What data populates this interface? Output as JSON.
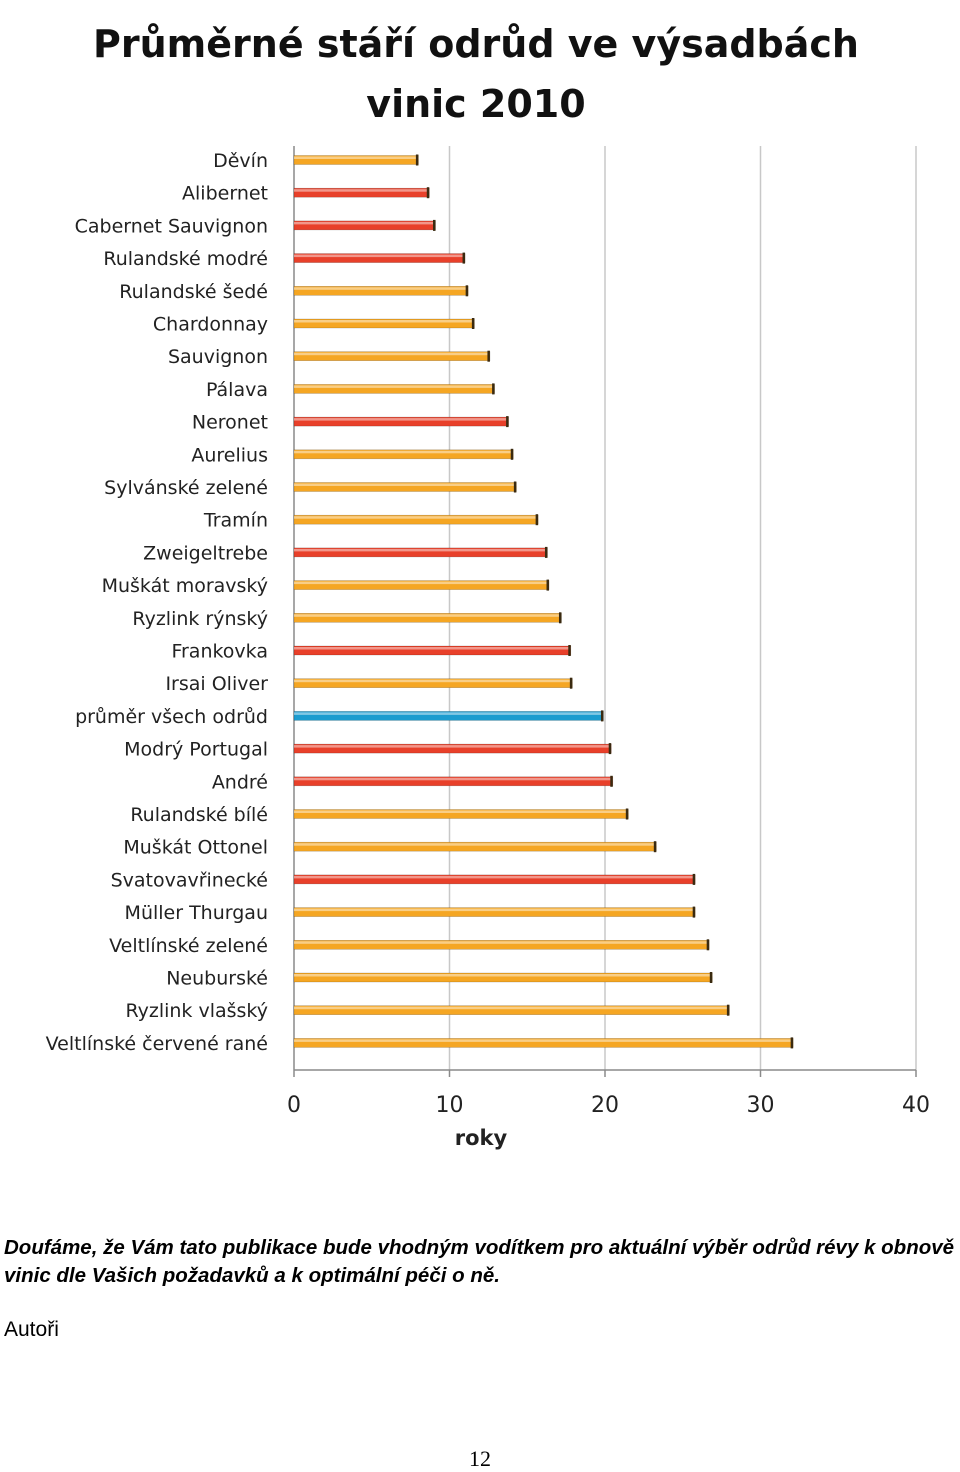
{
  "chart_data": {
    "type": "bar",
    "orientation": "horizontal",
    "title_lines": [
      "Průměrné stáří odrůd ve výsadbách",
      "vinic 2010"
    ],
    "xlabel": "roky",
    "ylabel": "",
    "xlim": [
      0,
      40
    ],
    "xticks": [
      0,
      10,
      20,
      30,
      40
    ],
    "grid": true,
    "legend": "none",
    "categories": [
      "Děvín",
      "Alibernet",
      "Cabernet Sauvignon",
      "Rulandské modré",
      "Rulandské šedé",
      "Chardonnay",
      "Sauvignon",
      "Pálava",
      "Neronet",
      "Aurelius",
      "Sylvánské zelené",
      "Tramín",
      "Zweigeltrebe",
      "Muškát moravský",
      "Ryzlink rýnský",
      "Frankovka",
      "Irsai Oliver",
      "průměr všech odrůd",
      "Modrý Portugal",
      "André",
      "Rulandské bílé",
      "Muškát Ottonel",
      "Svatovavřinecké",
      "Müller Thurgau",
      "Veltlínské zelené",
      "Neuburské",
      "Ryzlink vlašský",
      "Veltlínské červené rané"
    ],
    "values": [
      8.0,
      8.7,
      9.1,
      11.0,
      11.2,
      11.6,
      12.6,
      12.9,
      13.8,
      14.1,
      14.3,
      15.7,
      16.3,
      16.4,
      17.2,
      17.8,
      17.9,
      19.9,
      20.4,
      20.5,
      21.5,
      23.3,
      25.8,
      25.8,
      26.7,
      26.9,
      28.0,
      32.1
    ],
    "bar_kinds": [
      "white",
      "red",
      "red",
      "red",
      "white",
      "white",
      "white",
      "white",
      "red",
      "white",
      "white",
      "white",
      "red",
      "white",
      "white",
      "red",
      "white",
      "average",
      "red",
      "red",
      "white",
      "white",
      "red",
      "white",
      "white",
      "white",
      "white",
      "white"
    ],
    "colors": {
      "white": "#f5a623",
      "red": "#e8402a",
      "average": "#1c9ccf",
      "grid": "#c8c8c8",
      "axis": "#8a8a8a"
    }
  },
  "text": {
    "closing": "Doufáme, že Vám tato publikace bude vhodným vodítkem pro aktuální výběr odrůd révy k obnově vinic dle Vašich požadavků a k optimální péči o ně.",
    "authors": "Autoři",
    "page_number": "12"
  }
}
